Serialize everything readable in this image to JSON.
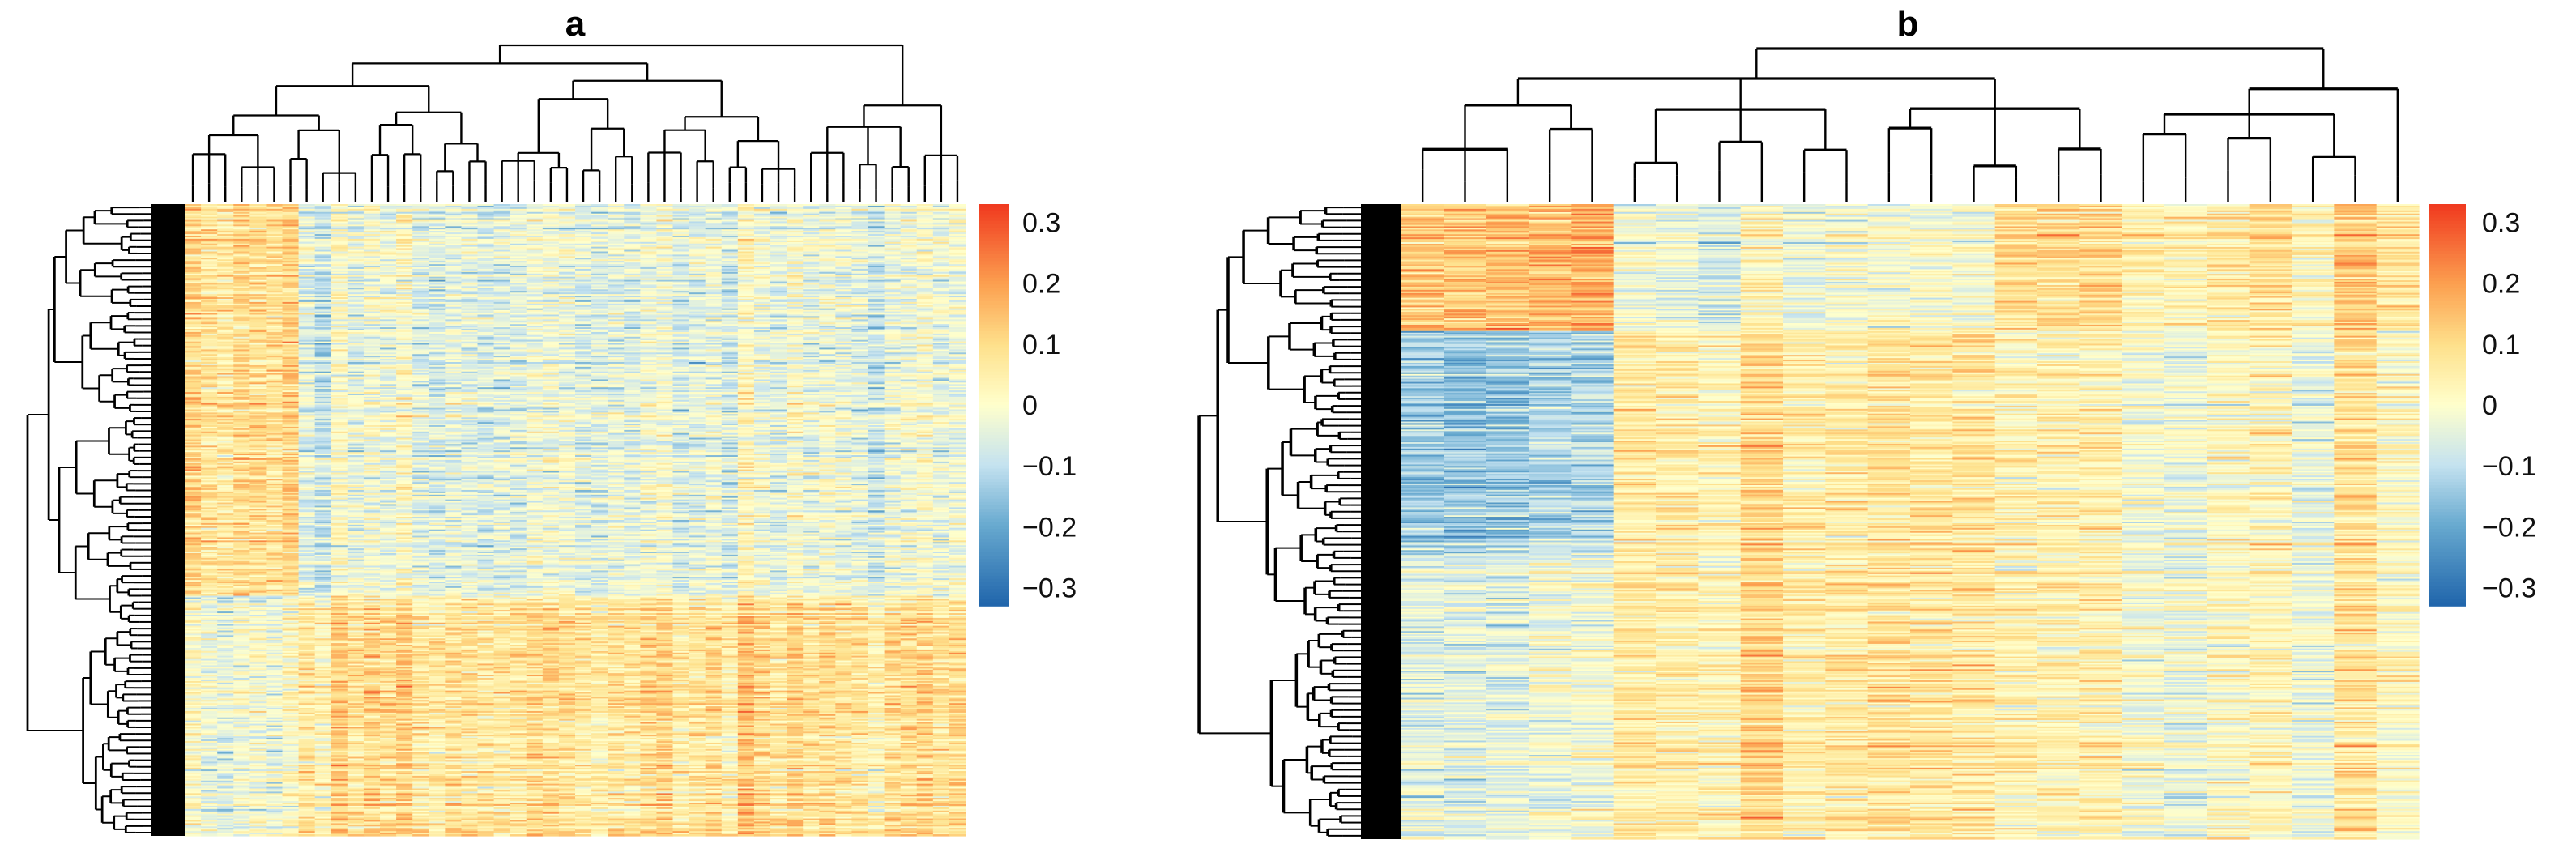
{
  "chart_data": [
    {
      "type": "heatmap",
      "panel_label": "a",
      "n_columns": 48,
      "n_rows": 400,
      "row_dendrogram": "left",
      "column_dendrogram": "top",
      "colorbar": {
        "min": -0.33,
        "max": 0.33,
        "ticks": [
          {
            "value": 0.3,
            "label": "0.3"
          },
          {
            "value": 0.2,
            "label": "0.2"
          },
          {
            "value": 0.1,
            "label": "0.1"
          },
          {
            "value": 0,
            "label": "0"
          },
          {
            "value": -0.1,
            "label": "−0.1"
          },
          {
            "value": -0.2,
            "label": "−0.2"
          },
          {
            "value": -0.3,
            "label": "−0.3"
          }
        ]
      },
      "blocks": [
        {
          "rows": [
            0.0,
            0.62
          ],
          "columns": [
            0,
            7
          ],
          "mean": 0.09
        },
        {
          "rows": [
            0.0,
            0.62
          ],
          "columns": [
            7,
            48
          ],
          "mean": -0.04
        },
        {
          "rows": [
            0.62,
            1.0
          ],
          "columns": [
            0,
            7
          ],
          "mean": -0.02
        },
        {
          "rows": [
            0.62,
            1.0
          ],
          "columns": [
            7,
            48
          ],
          "mean": 0.08
        }
      ]
    },
    {
      "type": "heatmap",
      "panel_label": "b",
      "n_columns": 24,
      "n_rows": 400,
      "row_dendrogram": "left",
      "column_dendrogram": "top",
      "colorbar": {
        "min": -0.33,
        "max": 0.33,
        "ticks": [
          {
            "value": 0.3,
            "label": "0.3"
          },
          {
            "value": 0.2,
            "label": "0.2"
          },
          {
            "value": 0.1,
            "label": "0.1"
          },
          {
            "value": 0,
            "label": "0"
          },
          {
            "value": -0.1,
            "label": "−0.1"
          },
          {
            "value": -0.2,
            "label": "−0.2"
          },
          {
            "value": -0.3,
            "label": "−0.3"
          }
        ]
      },
      "blocks": [
        {
          "rows": [
            0.0,
            0.2
          ],
          "columns": [
            0,
            5
          ],
          "mean": 0.16
        },
        {
          "rows": [
            0.2,
            0.55
          ],
          "columns": [
            0,
            5
          ],
          "mean": -0.13
        },
        {
          "rows": [
            0.55,
            1.0
          ],
          "columns": [
            0,
            5
          ],
          "mean": -0.03
        },
        {
          "rows": [
            0.0,
            0.2
          ],
          "columns": [
            5,
            14
          ],
          "mean": 0.0
        },
        {
          "rows": [
            0.2,
            1.0
          ],
          "columns": [
            5,
            14
          ],
          "mean": 0.08
        },
        {
          "rows": [
            0.0,
            0.2
          ],
          "columns": [
            14,
            24
          ],
          "mean": 0.07
        },
        {
          "rows": [
            0.2,
            1.0
          ],
          "columns": [
            14,
            24
          ],
          "mean": 0.01
        }
      ]
    }
  ]
}
